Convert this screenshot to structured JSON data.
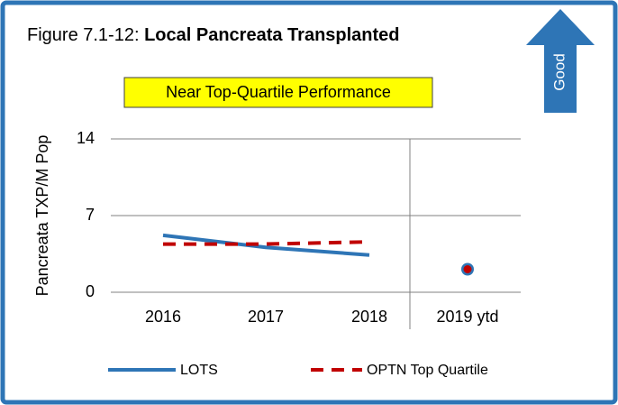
{
  "chart_data": {
    "type": "line",
    "figure_label": "Figure 7.1-12:",
    "title": "Local Pancreata Transplanted",
    "annotation": "Near Top-Quartile Performance",
    "direction_label": "Good",
    "ylabel": "Pancreata TXP/M Pop",
    "categories": [
      "2016",
      "2017",
      "2018",
      "2019 ytd"
    ],
    "ylim": [
      0,
      14
    ],
    "yticks": [
      0,
      7,
      14
    ],
    "grid": true,
    "legend": "bottom",
    "series": [
      {
        "name": "LOTS",
        "color": "#2e75b6",
        "values": [
          5.2,
          4.1,
          3.4,
          2.1
        ]
      },
      {
        "name": "OPTN Top Quartile",
        "color": "#c00000",
        "values": [
          4.4,
          4.4,
          4.6,
          2.1
        ]
      }
    ]
  }
}
